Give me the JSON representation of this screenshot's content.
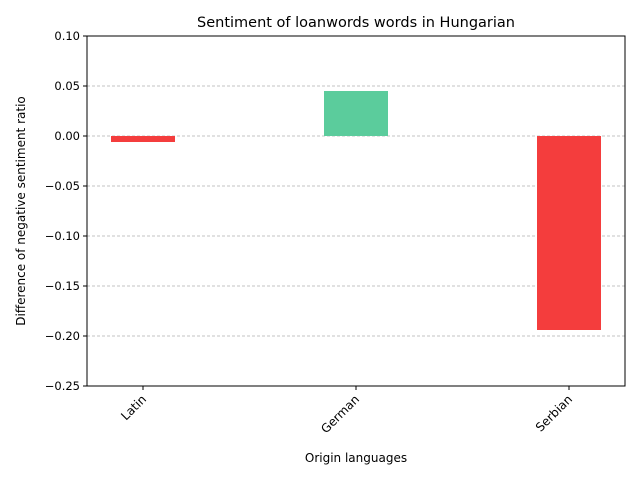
{
  "chart_data": {
    "type": "bar",
    "title": "Sentiment of loanwords words in Hungarian",
    "xlabel": "Origin languages",
    "ylabel": "Difference of negative sentiment ratio",
    "categories": [
      "Latin",
      "German",
      "Serbian"
    ],
    "values": [
      -0.006,
      0.045,
      -0.194
    ],
    "ylim": [
      -0.25,
      0.1
    ],
    "yticks": [
      0.1,
      0.05,
      0.0,
      -0.05,
      -0.1,
      -0.15,
      -0.2,
      -0.25
    ],
    "ytick_labels": [
      "0.10",
      "0.05",
      "0.00",
      "−0.05",
      "−0.10",
      "−0.15",
      "−0.20",
      "−0.25"
    ],
    "grid": "y-dashed",
    "colors": {
      "positive": "#5bcc9c",
      "negative": "#f43d3d",
      "grid": "#b0b0b0"
    }
  }
}
